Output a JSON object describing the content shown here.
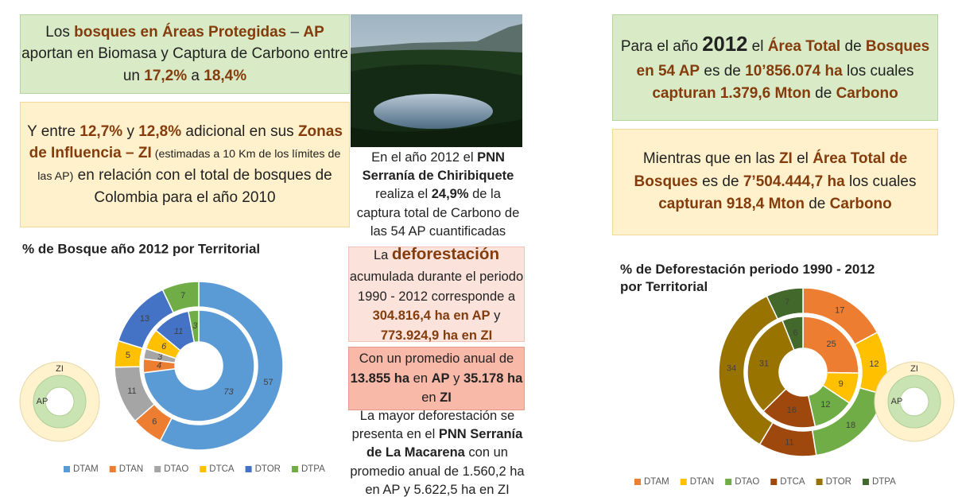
{
  "text_blocks": [
    [
      {
        "text": "Los "
      },
      {
        "text": "bosques en Áreas Protegidas",
        "style": "accent"
      },
      {
        "text": " – "
      },
      {
        "text": "AP",
        "style": "accent"
      },
      {
        "text": " aportan en Biomasa y Captura de Carbono entre un "
      },
      {
        "text": "17,2%",
        "style": "accent"
      },
      {
        "text": " a "
      },
      {
        "text": "18,4%",
        "style": "accent"
      }
    ],
    [
      {
        "text": "Y entre "
      },
      {
        "text": "12,7%",
        "style": "accent"
      },
      {
        "text": " y "
      },
      {
        "text": "12,8%",
        "style": "accent"
      },
      {
        "text": " adicional en sus "
      },
      {
        "text": "Zonas de Influencia – ZI",
        "style": "accent"
      },
      {
        "text": " (estimadas a 10 Km de los límites de las AP)",
        "style": "small"
      },
      {
        "text": " en relación con el total de bosques de Colombia para el año 2010"
      }
    ],
    [
      {
        "text": "En el año 2012 el "
      },
      {
        "text": "PNN Serranía de Chiribiquete",
        "style": "bold"
      },
      {
        "text": " realiza el "
      },
      {
        "text": "24,9%",
        "style": "bold"
      },
      {
        "text": " de la captura total de Carbono de las 54 AP cuantificadas"
      }
    ],
    [
      {
        "text": "Para el año "
      },
      {
        "text": "2012",
        "style": "big"
      },
      {
        "text": " el "
      },
      {
        "text": "Área Total",
        "style": "accent"
      },
      {
        "text": " de "
      },
      {
        "text": "Bosques en 54 AP",
        "style": "accent"
      },
      {
        "text": " es de "
      },
      {
        "text": "10’856.074 ha",
        "style": "accent"
      },
      {
        "text": " los cuales "
      },
      {
        "text": "capturan 1.379,6 Mton",
        "style": "accent"
      },
      {
        "text": " de "
      },
      {
        "text": "Carbono",
        "style": "accent"
      }
    ],
    [
      {
        "text": "Mientras que en las "
      },
      {
        "text": "ZI",
        "style": "accent"
      },
      {
        "text": " el "
      },
      {
        "text": "Área Total de Bosques",
        "style": "accent"
      },
      {
        "text": " es de "
      },
      {
        "text": "7’504.444,7 ha",
        "style": "accent"
      },
      {
        "text": " los cuales "
      },
      {
        "text": "capturan 918,4 Mton",
        "style": "accent"
      },
      {
        "text": " de "
      },
      {
        "text": "Carbono",
        "style": "accent"
      }
    ],
    [
      {
        "text": "La "
      },
      {
        "text": "deforestación",
        "style": "accent-big"
      },
      {
        "text": " acumulada durante el periodo 1990 - 2012 corresponde a "
      },
      {
        "text": "304.816,4 ha en AP",
        "style": "accent"
      },
      {
        "text": " y "
      },
      {
        "text": "773.924,9 ha en ZI",
        "style": "accent"
      }
    ],
    [
      {
        "text": "Con un promedio anual de "
      },
      {
        "text": "13.855 ha",
        "style": "bold"
      },
      {
        "text": " en "
      },
      {
        "text": "AP",
        "style": "bold"
      },
      {
        "text": " y "
      },
      {
        "text": "35.178 ha",
        "style": "bold"
      },
      {
        "text": " en "
      },
      {
        "text": "ZI",
        "style": "bold"
      }
    ],
    [
      {
        "text": "La mayor deforestación se presenta en el "
      },
      {
        "text": "PNN Serranía de La Macarena",
        "style": "bold"
      },
      {
        "text": " con un promedio anual de 1.560,2 ha en AP y 5.622,5 ha en ZI"
      }
    ]
  ],
  "chart_data": [
    {
      "type": "donut",
      "title": "% de Bosque año 2012 por Territorial",
      "categories": [
        "DTAM",
        "DTAN",
        "DTAO",
        "DTCA",
        "DTOR",
        "DTPA"
      ],
      "colors": [
        "#5b9bd5",
        "#ed7d31",
        "#a5a5a5",
        "#ffc000",
        "#4472c4",
        "#70ad47"
      ],
      "series": [
        {
          "name": "ZI",
          "values": [
            57,
            6,
            11,
            5,
            13,
            7
          ]
        },
        {
          "name": "AP",
          "values": [
            73,
            4,
            3,
            6,
            11,
            3
          ]
        }
      ]
    },
    {
      "type": "donut",
      "title": "% de Deforestación periodo 1990 - 2012 por Territorial",
      "categories": [
        "DTAM",
        "DTAN",
        "DTAO",
        "DTCA",
        "DTOR",
        "DTPA"
      ],
      "colors": [
        "#ed7d31",
        "#ffc000",
        "#70ad47",
        "#9e480e",
        "#997300",
        "#43682b"
      ],
      "series": [
        {
          "name": "ZI",
          "values": [
            17,
            12,
            18,
            11,
            34,
            7
          ]
        },
        {
          "name": "AP",
          "values": [
            25,
            9,
            12,
            16,
            31,
            6
          ]
        }
      ]
    }
  ]
}
